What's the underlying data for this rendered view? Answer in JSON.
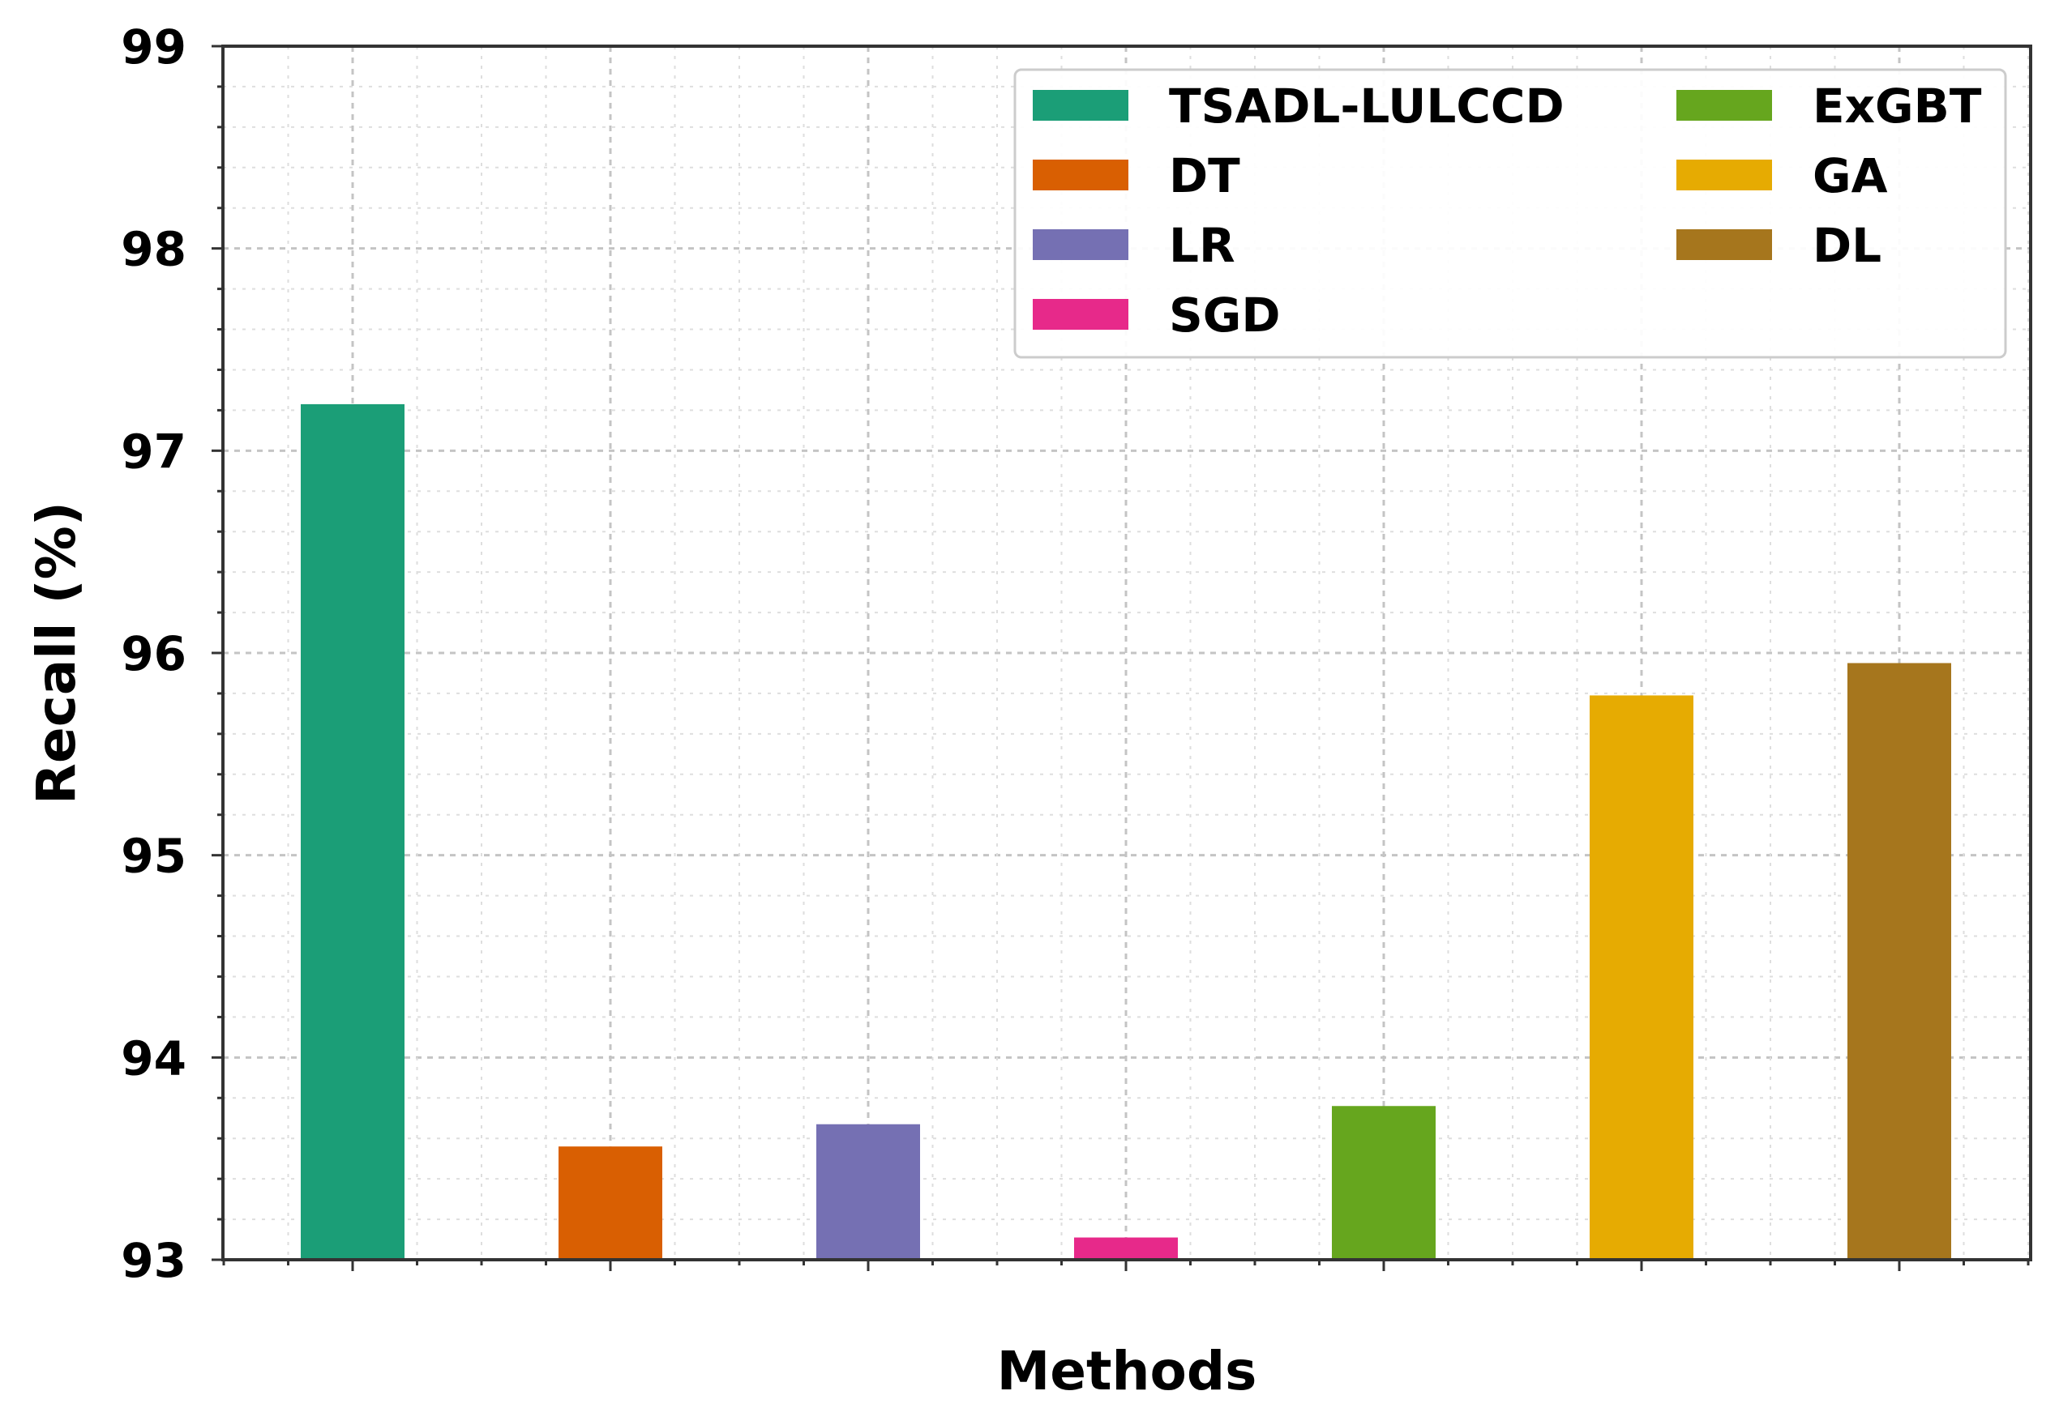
{
  "chart_data": {
    "type": "bar",
    "title": "",
    "xlabel": "Methods",
    "ylabel": "Recall (%)",
    "ylim": [
      93,
      99
    ],
    "yticks": [
      "93",
      "94",
      "95",
      "96",
      "97",
      "98",
      "99"
    ],
    "grid": true,
    "legend_position": "top-right",
    "categories": [
      "TSADL-LULCCD",
      "DT",
      "LR",
      "SGD",
      "ExGBT",
      "GA",
      "DL"
    ],
    "values": [
      97.23,
      93.56,
      93.67,
      93.11,
      93.76,
      95.79,
      95.95
    ],
    "colors": [
      "#1b9e77",
      "#d95f02",
      "#7570b3",
      "#e7298a",
      "#66a61e",
      "#e6ab02",
      "#a6761d"
    ]
  }
}
